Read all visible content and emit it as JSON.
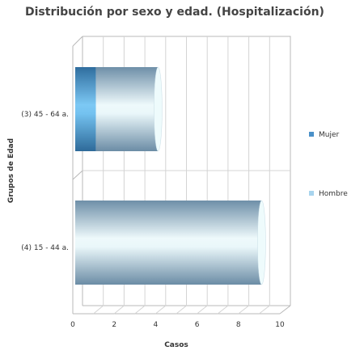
{
  "chart_data": {
    "type": "bar",
    "orientation": "horizontal",
    "stacked": true,
    "title": "Distribución por sexo y edad. (Hospitalización)",
    "xlabel": "Casos",
    "ylabel": "Grupos de Edad",
    "categories": [
      "(3) 45 - 64 a.",
      "(4) 15 - 44 a."
    ],
    "series": [
      {
        "name": "Mujer",
        "values": [
          1,
          0
        ],
        "color": "#4a90c8"
      },
      {
        "name": "Hombre",
        "values": [
          3,
          9
        ],
        "color": "#a8c4d8"
      }
    ],
    "xlim": [
      0,
      10
    ],
    "xticks": [
      "0",
      "2",
      "4",
      "6",
      "8",
      "10"
    ],
    "grid": true,
    "legend": "right"
  }
}
